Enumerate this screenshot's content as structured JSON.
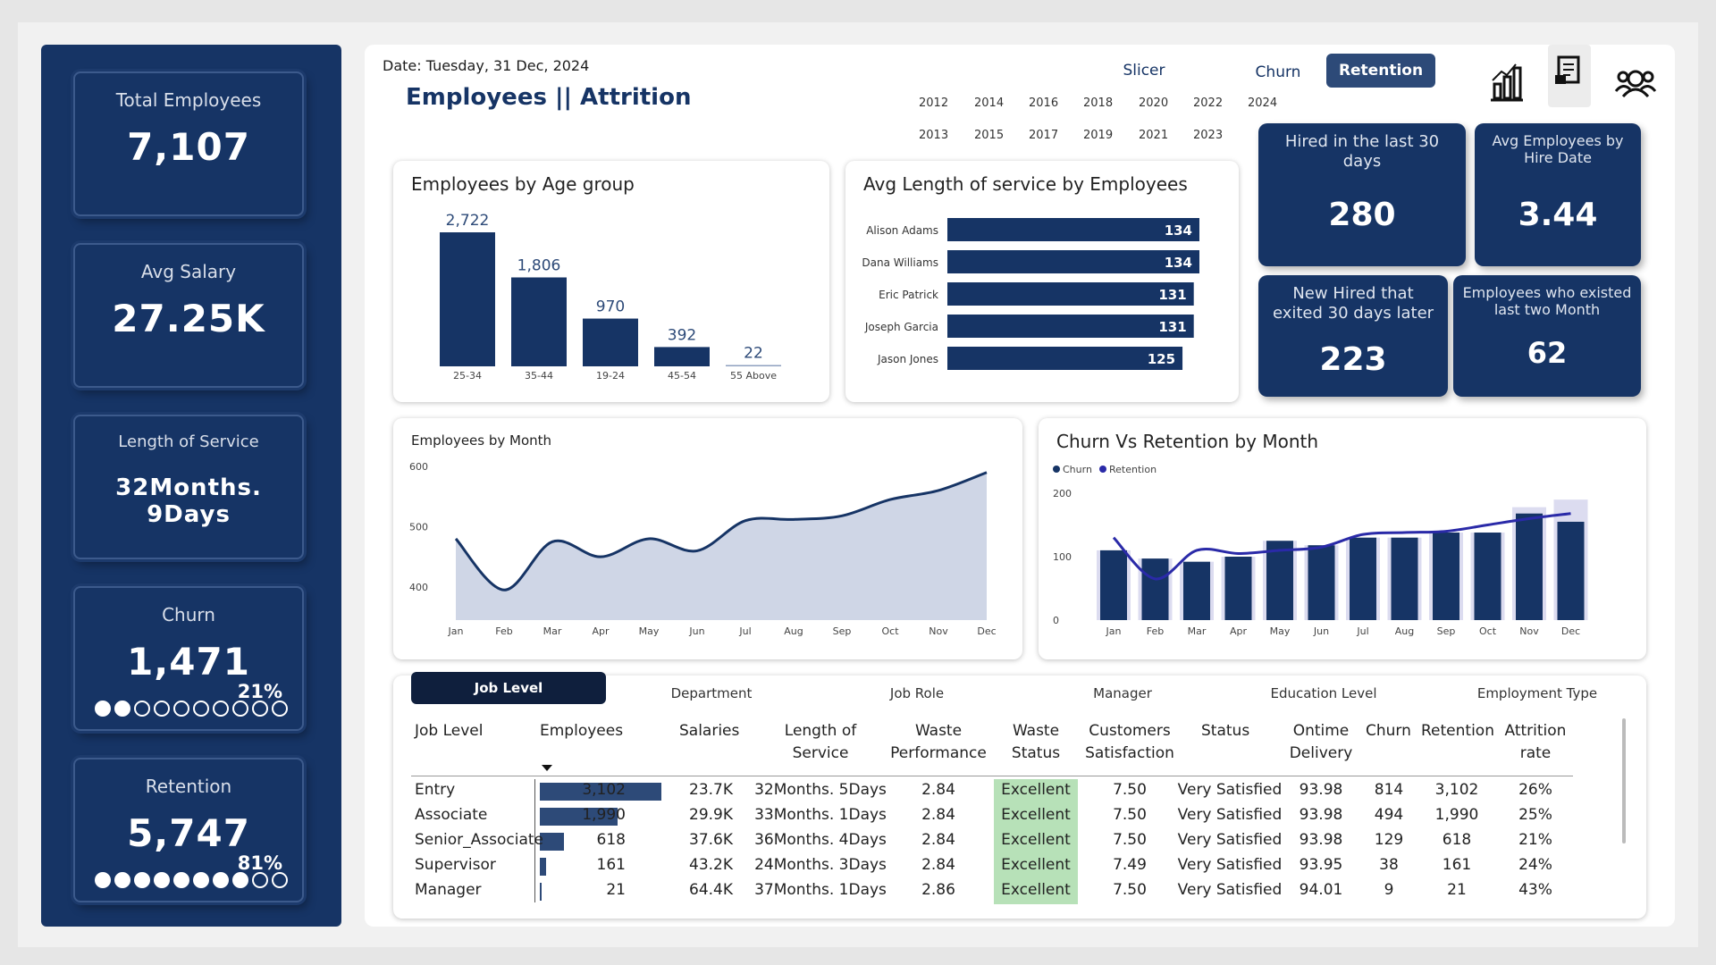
{
  "sidebar": {
    "kpis": [
      {
        "label": "Total Employees",
        "value": "7,107"
      },
      {
        "label": "Avg Salary",
        "value": "27.25K"
      },
      {
        "label": "Length of Service",
        "value": "32Months. 9Days"
      },
      {
        "label": "Churn",
        "value": "1,471",
        "pct": "21%",
        "filled": 2,
        "total": 10
      },
      {
        "label": "Retention",
        "value": "5,747",
        "pct": "81%",
        "filled": 8,
        "total": 10
      }
    ]
  },
  "header": {
    "date": "Date: Tuesday, 31 Dec, 2024",
    "title": "Employees || Attrition",
    "tabs": [
      "Slicer",
      "Churn",
      "Retention"
    ],
    "active_tab": "Retention",
    "years_row1": [
      "2012",
      "2014",
      "2016",
      "2018",
      "2020",
      "2022",
      "2024"
    ],
    "years_row2": [
      "2013",
      "2015",
      "2017",
      "2019",
      "2021",
      "2023"
    ]
  },
  "cards": {
    "age_title": "Employees by Age group",
    "service_title": "Avg Length of service by Employees",
    "month_title": "Employees by Month",
    "churn_title": "Churn Vs Retention by Month",
    "legend_churn": "Churn",
    "legend_retention": "Retention"
  },
  "blocks": [
    {
      "label": "Hired in the last 30 days",
      "value": "280"
    },
    {
      "label": "Avg Employees by Hire Date",
      "value": "3.44"
    },
    {
      "label": "New Hired that exited 30 days later",
      "value": "223"
    },
    {
      "label": "Employees who existed last two Month",
      "value": "62"
    }
  ],
  "chart_data": [
    {
      "type": "bar",
      "title": "Employees by Age group",
      "categories": [
        "25-34",
        "35-44",
        "19-24",
        "45-54",
        "55 Above"
      ],
      "values": [
        2722,
        1806,
        970,
        392,
        22
      ],
      "labels": [
        "2,722",
        "1,806",
        "970",
        "392",
        "22"
      ]
    },
    {
      "type": "bar",
      "title": "Avg Length of service by Employees",
      "orientation": "horizontal",
      "categories": [
        "Alison Adams",
        "Dana Williams",
        "Eric Patrick",
        "Joseph Garcia",
        "Jason Jones"
      ],
      "values": [
        134,
        134,
        131,
        131,
        125
      ]
    },
    {
      "type": "area",
      "title": "Employees by Month",
      "categories": [
        "Jan",
        "Feb",
        "Mar",
        "Apr",
        "May",
        "Jun",
        "Jul",
        "Aug",
        "Sep",
        "Oct",
        "Nov",
        "Dec"
      ],
      "values": [
        480,
        395,
        475,
        450,
        480,
        460,
        510,
        512,
        518,
        545,
        560,
        590
      ],
      "yticks": [
        400,
        500,
        600
      ]
    },
    {
      "type": "bar",
      "title": "Churn Vs Retention by Month",
      "categories": [
        "Jan",
        "Feb",
        "Mar",
        "Apr",
        "May",
        "Jun",
        "Jul",
        "Aug",
        "Sep",
        "Oct",
        "Nov",
        "Dec"
      ],
      "series": [
        {
          "name": "Churn",
          "values": [
            110,
            97,
            92,
            100,
            125,
            118,
            130,
            130,
            138,
            138,
            168,
            155
          ]
        },
        {
          "name": "Retention",
          "values": [
            130,
            65,
            110,
            105,
            110,
            115,
            135,
            138,
            140,
            150,
            160,
            168
          ]
        }
      ],
      "background_values": [
        110,
        97,
        92,
        100,
        125,
        118,
        130,
        130,
        138,
        138,
        178,
        190
      ],
      "yticks": [
        0,
        100,
        200
      ]
    }
  ],
  "table": {
    "tabs": [
      "Job Level",
      "Department",
      "Job Role",
      "Manager",
      "Education Level",
      "Employment Type"
    ],
    "headers": [
      "Job Level",
      "Employees",
      "Salaries",
      "Length of Service",
      "Waste Performance",
      "Waste Status",
      "Customers Satisfaction",
      "Status",
      "Ontime Delivery",
      "Churn",
      "Retention",
      "Attrition rate"
    ],
    "max_emp": 3102,
    "rows": [
      {
        "level": "Entry",
        "emp": "3,102",
        "emp_num": 3102,
        "sal": "23.7K",
        "los": "32Months. 5Days",
        "wp": "2.84",
        "ws": "Excellent",
        "cs": "7.50",
        "st": "Very Satisfied",
        "od": "93.98",
        "ch": "814",
        "re": "3,102",
        "ar": "26%"
      },
      {
        "level": "Associate",
        "emp": "1,990",
        "emp_num": 1990,
        "sal": "29.9K",
        "los": "33Months. 1Days",
        "wp": "2.84",
        "ws": "Excellent",
        "cs": "7.50",
        "st": "Very Satisfied",
        "od": "93.98",
        "ch": "494",
        "re": "1,990",
        "ar": "25%"
      },
      {
        "level": "Senior_Associate",
        "emp": "618",
        "emp_num": 618,
        "sal": "37.6K",
        "los": "36Months. 4Days",
        "wp": "2.84",
        "ws": "Excellent",
        "cs": "7.50",
        "st": "Very Satisfied",
        "od": "93.98",
        "ch": "129",
        "re": "618",
        "ar": "21%"
      },
      {
        "level": "Supervisor",
        "emp": "161",
        "emp_num": 161,
        "sal": "43.2K",
        "los": "24Months. 3Days",
        "wp": "2.84",
        "ws": "Excellent",
        "cs": "7.49",
        "st": "Very Satisfied",
        "od": "93.95",
        "ch": "38",
        "re": "161",
        "ar": "24%"
      },
      {
        "level": "Manager",
        "emp": "21",
        "emp_num": 21,
        "sal": "64.4K",
        "los": "37Months. 1Days",
        "wp": "2.86",
        "ws": "Excellent",
        "cs": "7.50",
        "st": "Very Satisfied",
        "od": "94.01",
        "ch": "9",
        "re": "21",
        "ar": "43%"
      }
    ]
  },
  "colors": {
    "navy": "#163465",
    "excellent_bg": "#b7e1b8",
    "area_fill": "#cfd6e6",
    "retention_line": "#2a2aa8"
  }
}
